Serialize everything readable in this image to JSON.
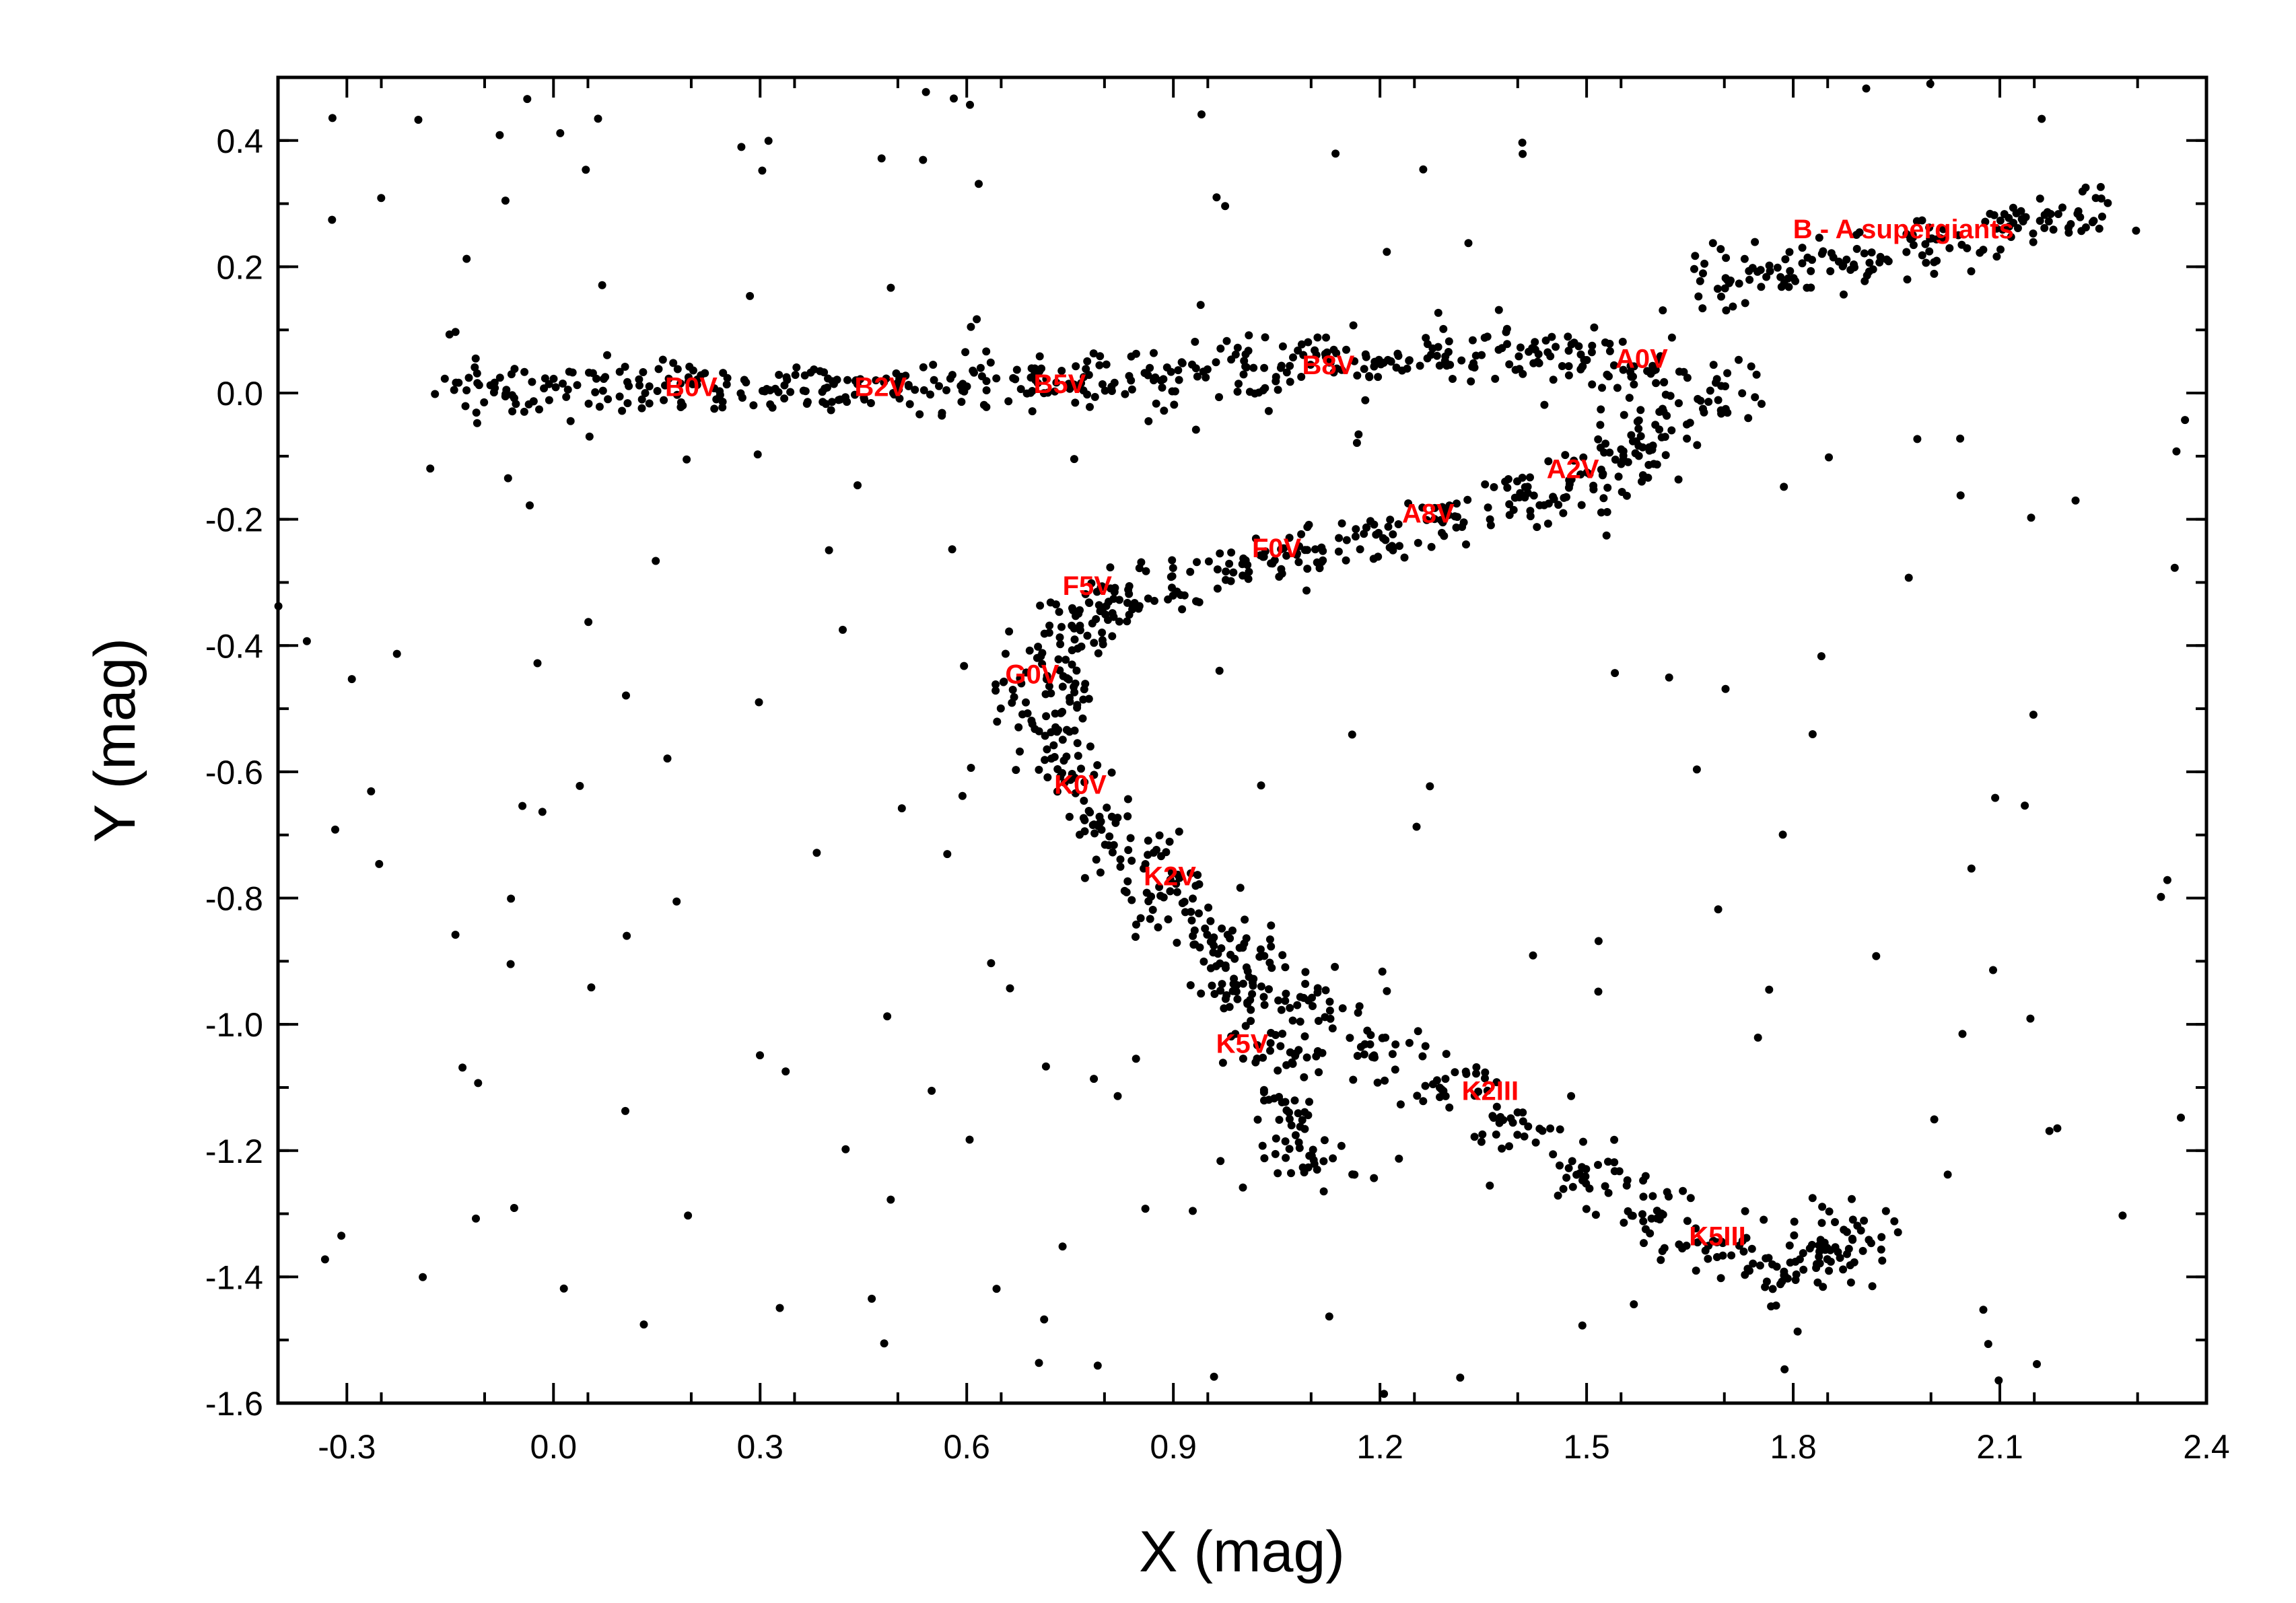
{
  "chart_data": {
    "type": "scatter",
    "title": "",
    "xlabel": "X  (mag)",
    "ylabel": "Y  (mag)",
    "xlim": [
      -0.4,
      2.4
    ],
    "ylim": [
      -1.6,
      0.5
    ],
    "xticks": [
      -0.3,
      0.0,
      0.3,
      0.6,
      0.9,
      1.2,
      1.5,
      1.8,
      2.1,
      2.4
    ],
    "xtick_labels": [
      "-0.3",
      "0.0",
      "0.3",
      "0.6",
      "0.9",
      "1.2",
      "1.5",
      "1.8",
      "2.1",
      "2.4"
    ],
    "yticks": [
      0.4,
      0.2,
      0.0,
      -0.2,
      -0.4,
      -0.6,
      -0.8,
      -1.0,
      -1.2,
      -1.4,
      -1.6
    ],
    "ytick_labels": [
      "0.4",
      "0.2",
      "0.0",
      "-0.2",
      "-0.4",
      "-0.6",
      "-0.8",
      "-1.0",
      "-1.2",
      "-1.4",
      "-1.6"
    ],
    "grid": false,
    "marker_color": "#000000",
    "annotation_color": "#ff0000",
    "annotations": [
      {
        "text": "B0V",
        "x": 0.2,
        "y": 0.01
      },
      {
        "text": "B2V",
        "x": 0.475,
        "y": 0.01
      },
      {
        "text": "B5V",
        "x": 0.735,
        "y": 0.015
      },
      {
        "text": "B8V",
        "x": 1.125,
        "y": 0.045
      },
      {
        "text": "A0V",
        "x": 1.58,
        "y": 0.055
      },
      {
        "text": "B - A supergiants",
        "x": 1.96,
        "y": 0.26
      },
      {
        "text": "A2V",
        "x": 1.48,
        "y": -0.12
      },
      {
        "text": "A8V",
        "x": 1.27,
        "y": -0.19
      },
      {
        "text": "F0V",
        "x": 1.05,
        "y": -0.245
      },
      {
        "text": "F5V",
        "x": 0.775,
        "y": -0.305
      },
      {
        "text": "G0V",
        "x": 0.695,
        "y": -0.445
      },
      {
        "text": "K0V",
        "x": 0.765,
        "y": -0.62
      },
      {
        "text": "K2V",
        "x": 0.895,
        "y": -0.765
      },
      {
        "text": "K5V",
        "x": 1.0,
        "y": -1.03
      },
      {
        "text": "K2III",
        "x": 1.36,
        "y": -1.105
      },
      {
        "text": "K5III",
        "x": 1.69,
        "y": -1.335
      }
    ],
    "series": [
      {
        "ridge_points": [
          [
            -0.1,
            0.01
          ],
          [
            0.0,
            0.0
          ],
          [
            0.1,
            0.005
          ],
          [
            0.2,
            0.005
          ],
          [
            0.3,
            0.008
          ],
          [
            0.4,
            0.01
          ],
          [
            0.5,
            0.012
          ],
          [
            0.6,
            0.015
          ],
          [
            0.7,
            0.02
          ],
          [
            0.8,
            0.025
          ],
          [
            0.9,
            0.03
          ],
          [
            1.0,
            0.04
          ],
          [
            1.1,
            0.045
          ],
          [
            1.2,
            0.05
          ],
          [
            1.3,
            0.055
          ],
          [
            1.4,
            0.055
          ],
          [
            1.5,
            0.05
          ],
          [
            1.6,
            0.03
          ],
          [
            1.7,
            0.0
          ],
          [
            1.6,
            -0.06
          ],
          [
            1.55,
            -0.1
          ],
          [
            1.5,
            -0.14
          ],
          [
            1.4,
            -0.17
          ],
          [
            1.3,
            -0.2
          ],
          [
            1.2,
            -0.23
          ],
          [
            1.1,
            -0.25
          ],
          [
            1.0,
            -0.27
          ],
          [
            0.9,
            -0.3
          ],
          [
            0.8,
            -0.33
          ],
          [
            0.75,
            -0.37
          ],
          [
            0.72,
            -0.42
          ],
          [
            0.71,
            -0.47
          ],
          [
            0.72,
            -0.53
          ],
          [
            0.75,
            -0.6
          ],
          [
            0.8,
            -0.68
          ],
          [
            0.85,
            -0.74
          ],
          [
            0.9,
            -0.8
          ],
          [
            0.95,
            -0.87
          ],
          [
            1.0,
            -0.95
          ],
          [
            1.05,
            -1.05
          ],
          [
            1.08,
            -1.15
          ],
          [
            1.1,
            -1.22
          ],
          [
            1.0,
            -0.9
          ],
          [
            1.1,
            -0.97
          ],
          [
            1.2,
            -1.04
          ],
          [
            1.3,
            -1.1
          ],
          [
            1.4,
            -1.17
          ],
          [
            1.5,
            -1.24
          ],
          [
            1.6,
            -1.3
          ],
          [
            1.7,
            -1.36
          ],
          [
            1.78,
            -1.4
          ],
          [
            1.85,
            -1.37
          ],
          [
            1.88,
            -1.33
          ],
          [
            1.7,
            0.18
          ],
          [
            1.8,
            0.2
          ],
          [
            1.9,
            0.22
          ],
          [
            2.0,
            0.24
          ],
          [
            2.1,
            0.26
          ],
          [
            2.2,
            0.28
          ]
        ]
      }
    ]
  }
}
